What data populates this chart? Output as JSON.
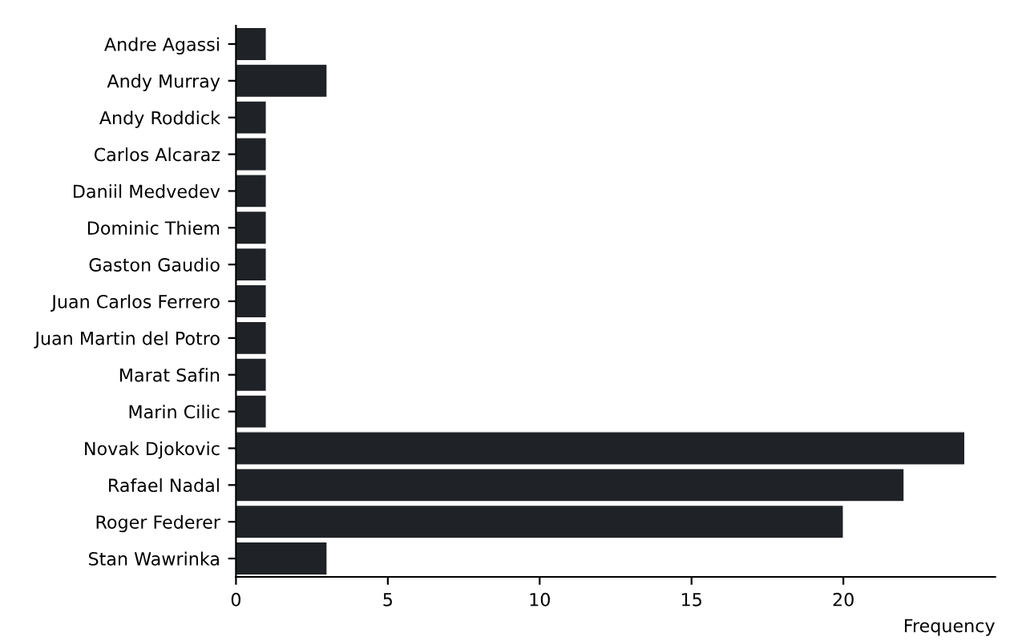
{
  "chart_data": {
    "type": "bar",
    "orientation": "horizontal",
    "xlabel": "Frequency",
    "categories": [
      "Andre Agassi",
      "Andy Murray",
      "Andy Roddick",
      "Carlos Alcaraz",
      "Daniil Medvedev",
      "Dominic Thiem",
      "Gaston Gaudio",
      "Juan Carlos Ferrero",
      "Juan Martin del Potro",
      "Marat Safin",
      "Marin Cilic",
      "Novak Djokovic",
      "Rafael Nadal",
      "Roger Federer",
      "Stan Wawrinka"
    ],
    "values": [
      1,
      3,
      1,
      1,
      1,
      1,
      1,
      1,
      1,
      1,
      1,
      24,
      22,
      20,
      3
    ],
    "color": "#1f2226",
    "xlim": [
      0,
      25
    ],
    "xticks": [
      0,
      5,
      10,
      15,
      20
    ],
    "grid": false,
    "legend": false
  }
}
